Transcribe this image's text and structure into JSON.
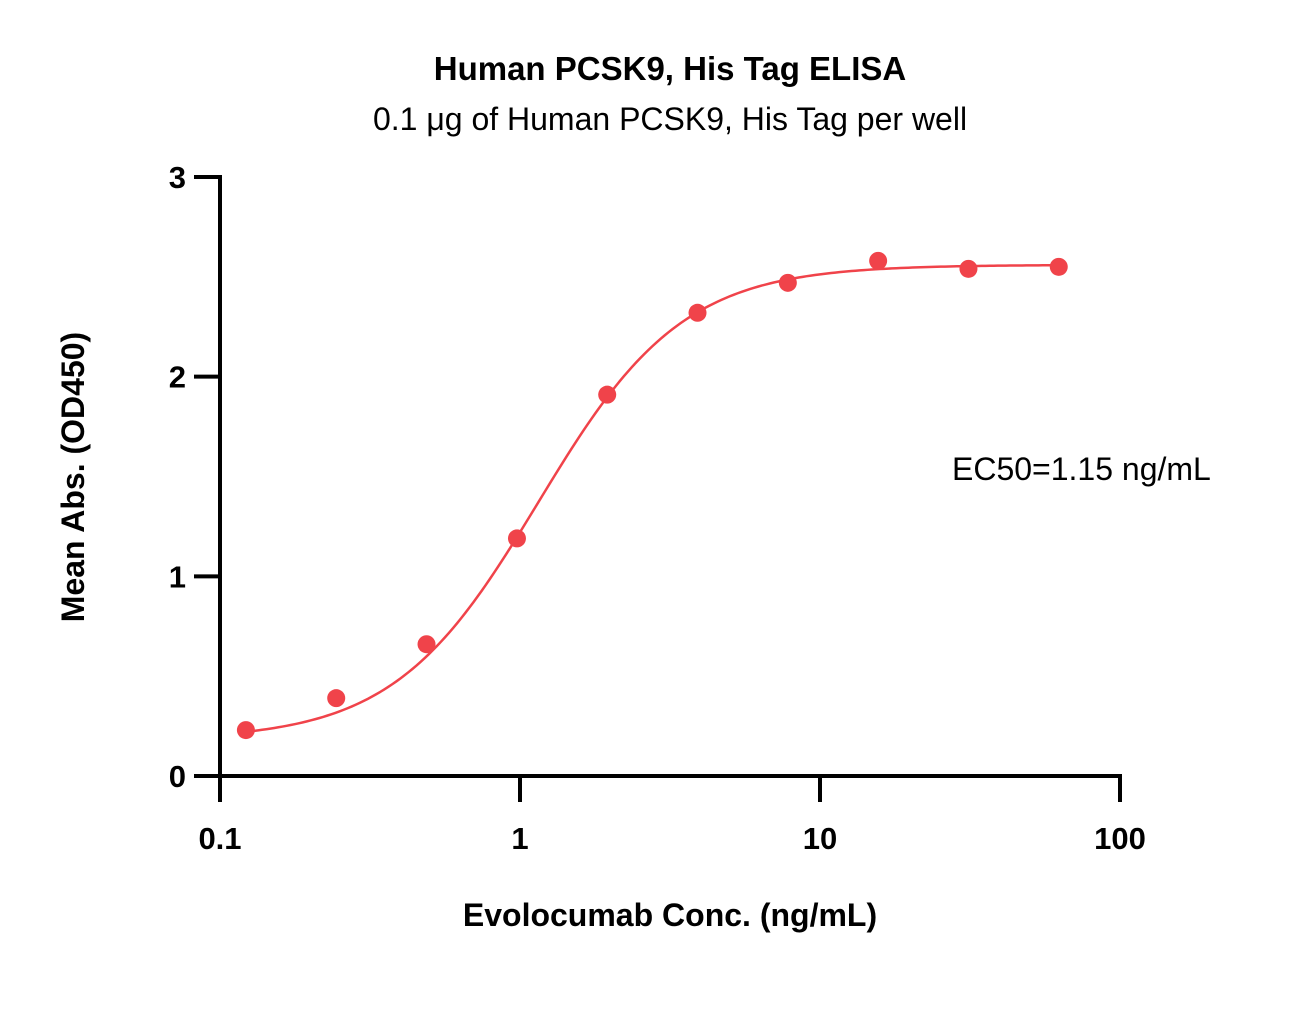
{
  "chart_data": {
    "type": "scatter",
    "title": "Human PCSK9, His Tag ELISA",
    "subtitle": "0.1 μg of Human PCSK9, His Tag per well",
    "xlabel": "Evolocumab Conc. (ng/mL)",
    "ylabel": "Mean Abs. (OD450)",
    "x_scale": "log",
    "xlim": [
      0.1,
      100
    ],
    "ylim": [
      0,
      3
    ],
    "x_ticks": [
      {
        "value": 0.1,
        "label": "0.1"
      },
      {
        "value": 1,
        "label": "1"
      },
      {
        "value": 10,
        "label": "10"
      },
      {
        "value": 100,
        "label": "100"
      }
    ],
    "y_ticks": [
      {
        "value": 0,
        "label": "0"
      },
      {
        "value": 1,
        "label": "1"
      },
      {
        "value": 2,
        "label": "2"
      },
      {
        "value": 3,
        "label": "3"
      }
    ],
    "grid": false,
    "color": "#f0434a",
    "points": [
      {
        "x": 0.122,
        "y": 0.23
      },
      {
        "x": 0.244,
        "y": 0.39
      },
      {
        "x": 0.488,
        "y": 0.66
      },
      {
        "x": 0.977,
        "y": 1.19
      },
      {
        "x": 1.953,
        "y": 1.91
      },
      {
        "x": 3.906,
        "y": 2.32
      },
      {
        "x": 7.813,
        "y": 2.47
      },
      {
        "x": 15.625,
        "y": 2.58
      },
      {
        "x": 31.25,
        "y": 2.54
      },
      {
        "x": 62.5,
        "y": 2.55
      }
    ],
    "fit": {
      "model": "4PL",
      "bottom": 0.18,
      "top": 2.56,
      "ec50": 1.15,
      "hill": 1.8,
      "x_range": [
        0.122,
        62.5
      ]
    },
    "annotation": "EC50=1.15 ng/mL"
  }
}
